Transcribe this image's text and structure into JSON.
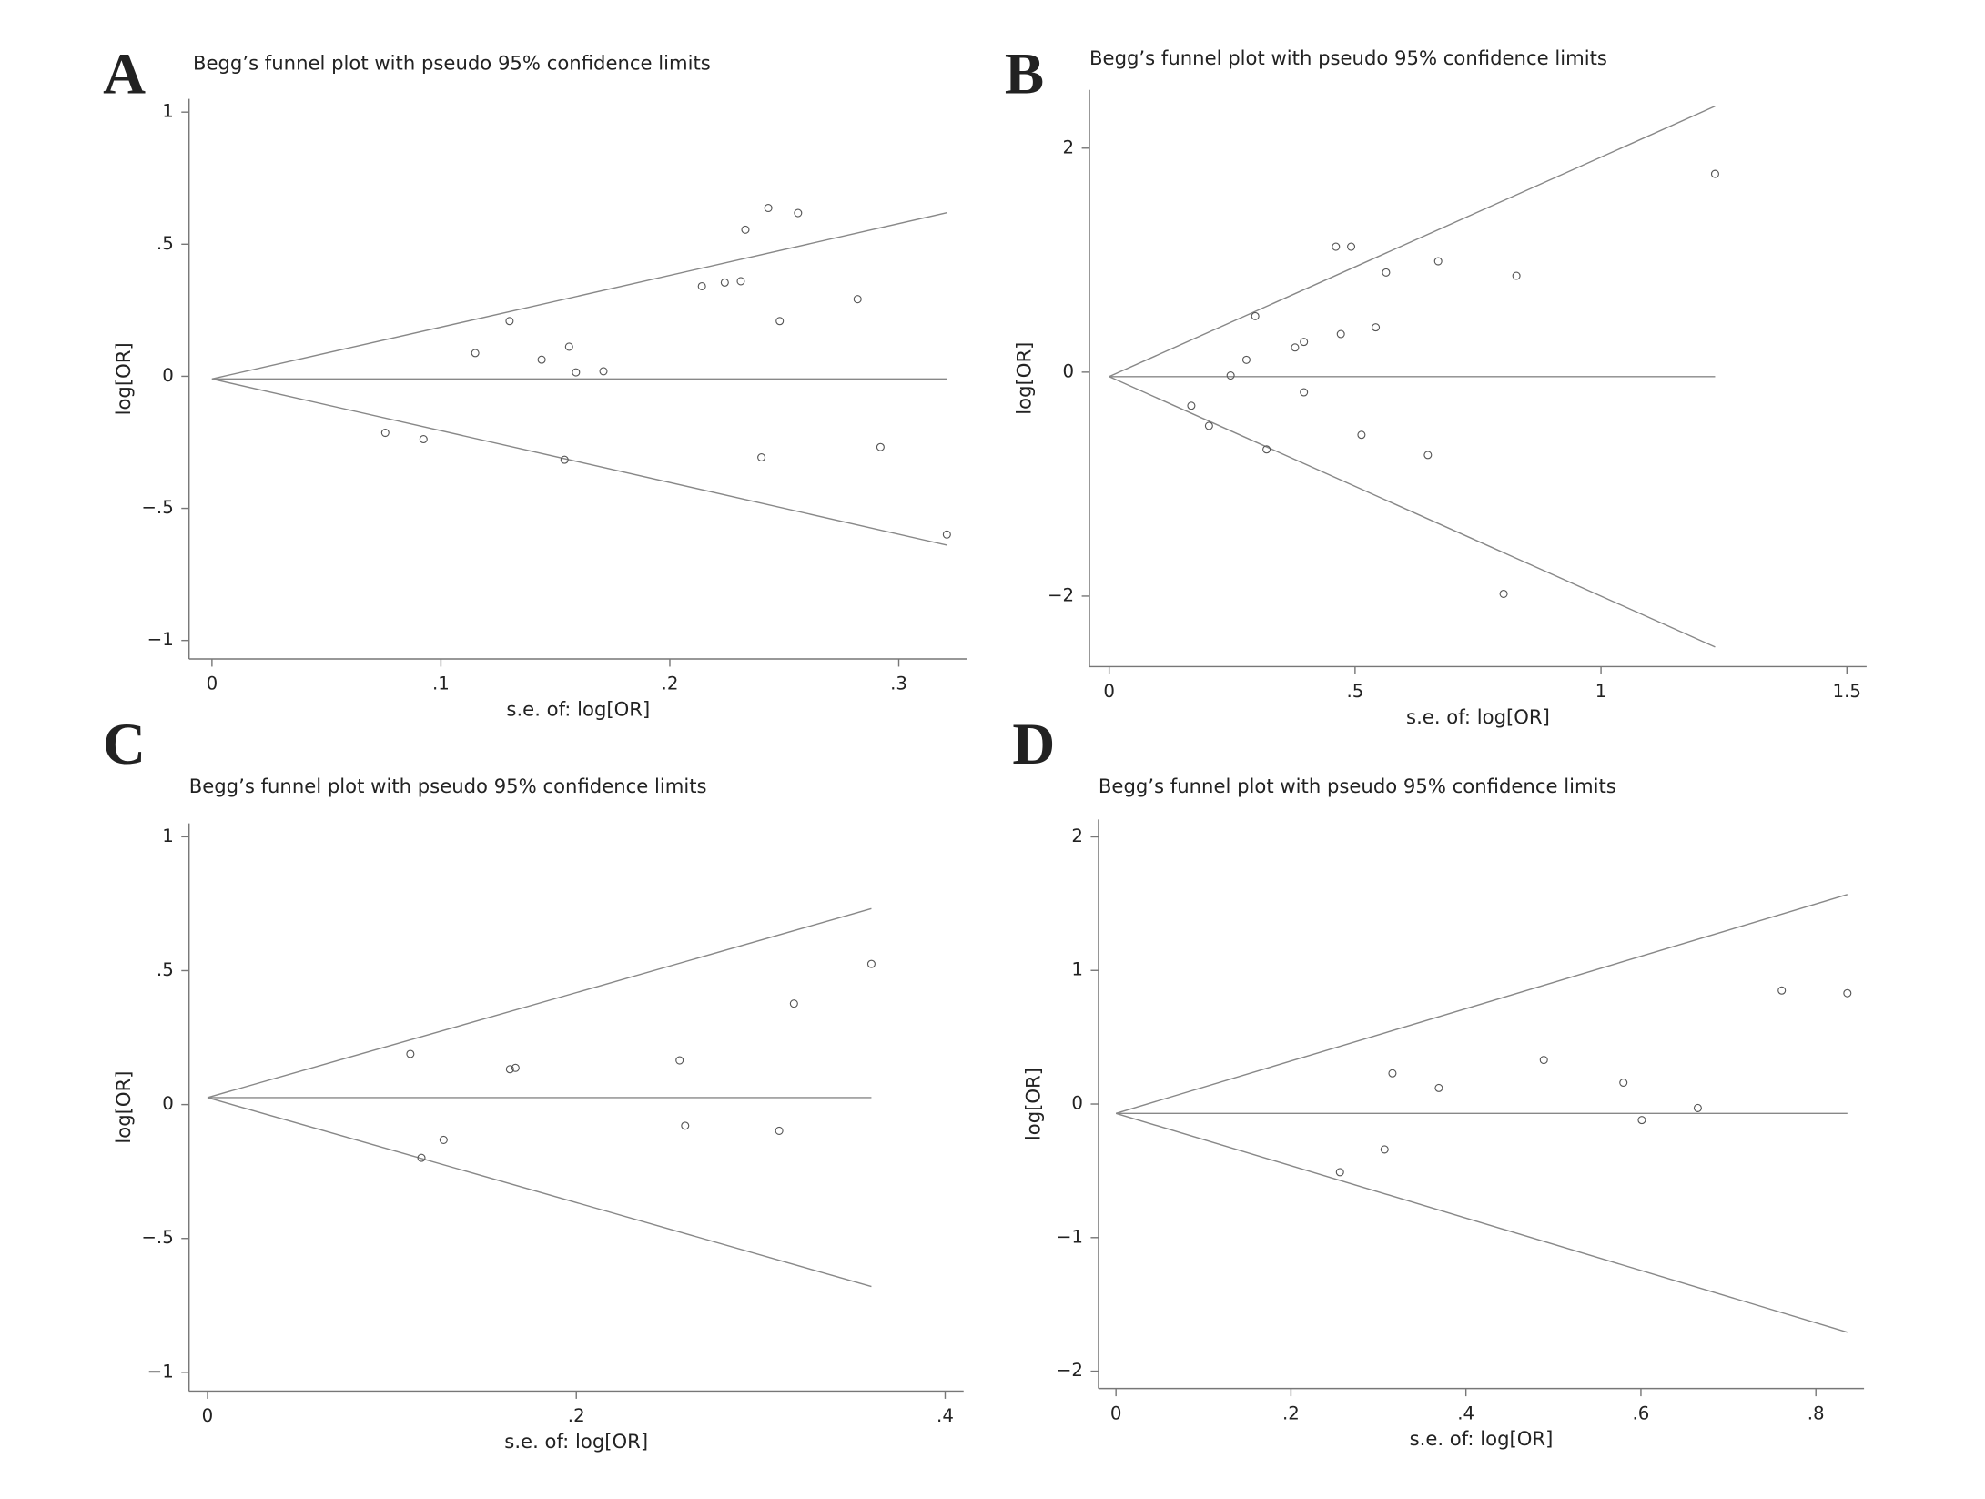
{
  "chart_data": [
    {
      "type": "scatter",
      "panel_label": "A",
      "title": "Begg’s funnel plot with pseudo 95% confidence limits",
      "x_label": "s.e. of: log[OR]",
      "y_label": "log[OR]",
      "x": [
        0.0757,
        0.0924,
        0.115,
        0.13,
        0.144,
        0.154,
        0.156,
        0.159,
        0.171,
        0.214,
        0.224,
        0.231,
        0.233,
        0.24,
        0.243,
        0.248,
        0.256,
        0.282,
        0.292,
        0.321
      ],
      "y": [
        -0.214,
        -0.238,
        0.088,
        0.209,
        0.063,
        -0.316,
        0.112,
        0.015,
        0.019,
        0.341,
        0.355,
        0.36,
        0.555,
        -0.307,
        0.637,
        0.209,
        0.618,
        0.292,
        -0.268,
        -0.599
      ],
      "pooled_estimate": -0.01,
      "xlim": [
        -0.01,
        0.33
      ],
      "ylim": [
        -1.07,
        1.05
      ],
      "xticks": [
        0,
        {
          "value": 0.1,
          "label": ".1"
        },
        {
          "value": 0.2,
          "label": ".2"
        },
        {
          "value": 0.3,
          "label": ".3"
        }
      ],
      "yticks": [
        {
          "value": -1,
          "label": "−1"
        },
        {
          "value": -0.5,
          "label": "−.5"
        },
        0,
        {
          "value": 0.5,
          "label": ".5"
        },
        1
      ],
      "color": "#555555"
    },
    {
      "type": "scatter",
      "panel_label": "B",
      "title": "Begg’s funnel plot with pseudo 95% confidence limits",
      "x_label": "s.e. of: log[OR]",
      "y_label": "log[OR]",
      "x": [
        0.167,
        0.203,
        0.247,
        0.279,
        0.297,
        0.32,
        0.378,
        0.396,
        0.396,
        0.461,
        0.471,
        0.492,
        0.513,
        0.542,
        0.563,
        0.648,
        0.669,
        0.802,
        0.828,
        1.232
      ],
      "y": [
        -0.3,
        -0.48,
        -0.03,
        0.11,
        0.5,
        -0.69,
        0.22,
        0.27,
        -0.18,
        1.12,
        0.34,
        1.12,
        -0.56,
        0.4,
        0.89,
        -0.74,
        0.99,
        -1.98,
        0.86,
        1.77
      ],
      "pooled_estimate": -0.04,
      "xlim": [
        -0.04,
        1.54
      ],
      "ylim": [
        -2.63,
        2.52
      ],
      "xticks": [
        0,
        {
          "value": 0.5,
          "label": ".5"
        },
        1,
        1.5
      ],
      "yticks": [
        {
          "value": -2,
          "label": "−2"
        },
        0,
        2
      ],
      "color": "#555555"
    },
    {
      "type": "scatter",
      "panel_label": "C",
      "title": "Begg’s funnel plot with pseudo 95% confidence limits",
      "x_label": "s.e. of: log[OR]",
      "y_label": "log[OR]",
      "x": [
        0.11,
        0.116,
        0.128,
        0.164,
        0.167,
        0.256,
        0.259,
        0.31,
        0.318,
        0.36
      ],
      "y": [
        0.189,
        -0.199,
        -0.132,
        0.132,
        0.137,
        0.165,
        -0.079,
        -0.098,
        0.377,
        0.525
      ],
      "pooled_estimate": 0.026,
      "xlim": [
        -0.01,
        0.41
      ],
      "ylim": [
        -1.07,
        1.05
      ],
      "xticks": [
        0,
        {
          "value": 0.2,
          "label": ".2"
        },
        {
          "value": 0.4,
          "label": ".4"
        }
      ],
      "yticks": [
        {
          "value": -1,
          "label": "−1"
        },
        {
          "value": -0.5,
          "label": "−.5"
        },
        0,
        {
          "value": 0.5,
          "label": ".5"
        },
        1
      ],
      "color": "#555555"
    },
    {
      "type": "scatter",
      "panel_label": "D",
      "title": "Begg’s funnel plot with pseudo 95% confidence limits",
      "x_label": "s.e. of: log[OR]",
      "y_label": "log[OR]",
      "x": [
        0.256,
        0.307,
        0.316,
        0.369,
        0.489,
        0.58,
        0.601,
        0.665,
        0.761,
        0.836
      ],
      "y": [
        -0.51,
        -0.34,
        0.23,
        0.12,
        0.33,
        0.16,
        -0.12,
        -0.03,
        0.85,
        0.83
      ],
      "pooled_estimate": -0.07,
      "xlim": [
        -0.02,
        0.855
      ],
      "ylim": [
        -2.13,
        2.13
      ],
      "xticks": [
        0,
        {
          "value": 0.2,
          "label": ".2"
        },
        {
          "value": 0.4,
          "label": ".4"
        },
        {
          "value": 0.6,
          "label": ".6"
        },
        {
          "value": 0.8,
          "label": ".8"
        }
      ],
      "yticks": [
        {
          "value": -2,
          "label": "−2"
        },
        {
          "value": -1,
          "label": "−1"
        },
        0,
        1,
        2
      ],
      "color": "#555555"
    }
  ]
}
